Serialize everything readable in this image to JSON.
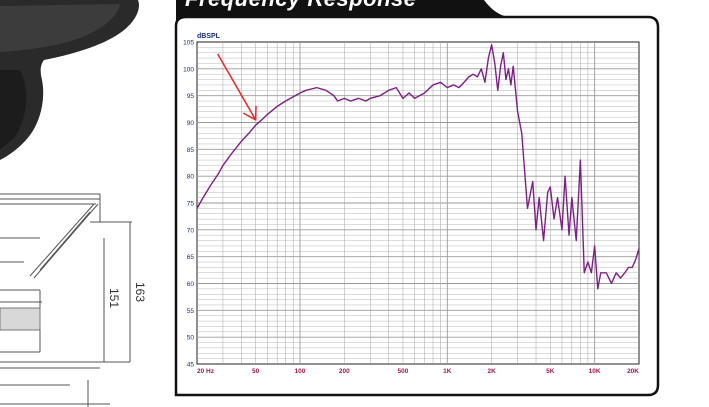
{
  "panel": {
    "title": "Frequency Response"
  },
  "drawing": {
    "dimensions": [
      "163",
      "151"
    ]
  },
  "colors": {
    "curve": "#7e1f86",
    "arrow": "#e8262a",
    "grid": "#9a9a9a",
    "frame": "#222222",
    "y_tick_text": "#1a2f7a",
    "x_tick_text": "#9e1a4a"
  },
  "chart_data": {
    "type": "line",
    "title": "",
    "xlabel": "",
    "ylabel": "dBSPL",
    "x_scale": "log",
    "xlim": [
      20,
      20000
    ],
    "ylim": [
      45,
      105
    ],
    "grid": true,
    "x_ticks": [
      {
        "value": 20,
        "label": "20 Hz"
      },
      {
        "value": 50,
        "label": "50"
      },
      {
        "value": 100,
        "label": "100"
      },
      {
        "value": 200,
        "label": "200"
      },
      {
        "value": 500,
        "label": "500"
      },
      {
        "value": 1000,
        "label": "1K"
      },
      {
        "value": 2000,
        "label": "2K"
      },
      {
        "value": 5000,
        "label": "5K"
      },
      {
        "value": 10000,
        "label": "10K"
      },
      {
        "value": 20000,
        "label": "20K"
      }
    ],
    "y_ticks": [
      105,
      100,
      95,
      90,
      85,
      80,
      75,
      70,
      65,
      60,
      55,
      50,
      45
    ],
    "annotation": {
      "type": "arrow",
      "x": 50,
      "y": 90.5
    },
    "series": [
      {
        "x": [
          20,
          22,
          25,
          28,
          30,
          35,
          40,
          45,
          50,
          55,
          60,
          70,
          80,
          100,
          110,
          130,
          150,
          170,
          180,
          200,
          220,
          250,
          280,
          300,
          350,
          400,
          450,
          500,
          550,
          600,
          700,
          800,
          900,
          1000,
          1100,
          1200,
          1300,
          1400,
          1500,
          1600,
          1700,
          1800,
          1900,
          2000,
          2100,
          2200,
          2300,
          2400,
          2500,
          2600,
          2700,
          2800,
          3000,
          3200,
          3500,
          3800,
          4000,
          4200,
          4500,
          4800,
          5000,
          5300,
          5600,
          6000,
          6300,
          6700,
          7000,
          7500,
          8000,
          8500,
          9000,
          9500,
          10000,
          10500,
          11000,
          12000,
          13000,
          14000,
          15000,
          16000,
          17000,
          18000,
          19000,
          20000
        ],
        "y": [
          74,
          76,
          78.5,
          80.5,
          82,
          84.5,
          86.5,
          88,
          89.5,
          90.5,
          91.5,
          93,
          94,
          95.5,
          96,
          96.5,
          96,
          95,
          94,
          94.5,
          94,
          94.5,
          94,
          94.5,
          95,
          96,
          96.5,
          94.5,
          95.5,
          94.5,
          95.5,
          97,
          97.5,
          96.5,
          97,
          96.5,
          97.5,
          98.5,
          99,
          98.5,
          100,
          97.5,
          102,
          104.5,
          101,
          96,
          100.5,
          103,
          98,
          100,
          97,
          100.5,
          92,
          88,
          74,
          79,
          70,
          76,
          68,
          77,
          78,
          72,
          76,
          70,
          80,
          69,
          76,
          68,
          83,
          62,
          64,
          62,
          67,
          59,
          62,
          62,
          60,
          62,
          61,
          62,
          63,
          63,
          64.5,
          66.5
        ]
      }
    ]
  }
}
